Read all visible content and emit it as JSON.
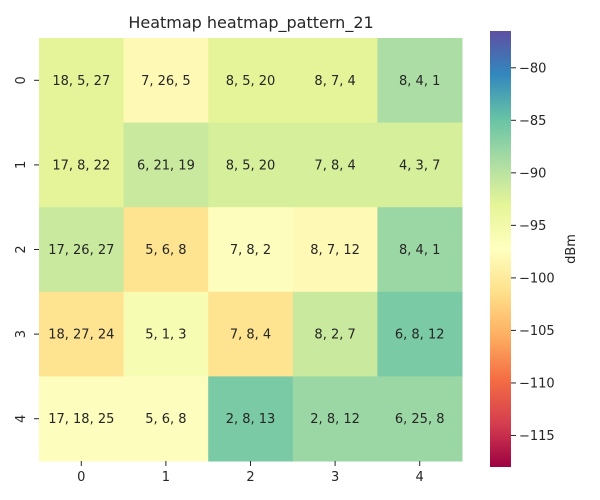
{
  "chart_data": {
    "type": "heatmap",
    "title": "Heatmap heatmap_pattern_21",
    "xlabel": "",
    "ylabel": "",
    "x_categories": [
      "0",
      "1",
      "2",
      "3",
      "4"
    ],
    "y_categories": [
      "0",
      "1",
      "2",
      "3",
      "4"
    ],
    "cell_labels": [
      [
        "18, 5, 27",
        "7, 26, 5",
        "8, 5, 20",
        "8, 7, 4",
        "8, 4, 1"
      ],
      [
        "17, 8, 22",
        "6, 21, 19",
        "8, 5, 20",
        "7, 8, 4",
        "4, 3, 7"
      ],
      [
        "17, 26, 27",
        "5, 6, 8",
        "7, 8, 2",
        "8, 7, 12",
        "8, 4, 1"
      ],
      [
        "18, 27, 24",
        "5, 1, 3",
        "7, 8, 4",
        "8, 2, 7",
        "6, 8, 12"
      ],
      [
        "17, 18, 25",
        "5, 6, 8",
        "2, 8, 13",
        "2, 8, 12",
        "6, 25, 8"
      ]
    ],
    "values": [
      [
        -93,
        -98,
        -93,
        -93,
        -89
      ],
      [
        -93,
        -91,
        -92,
        -92,
        -92
      ],
      [
        -91,
        -101,
        -97,
        -98,
        -88
      ],
      [
        -101,
        -96,
        -101,
        -91,
        -86
      ],
      [
        -97,
        -97,
        -86,
        -88,
        -88
      ]
    ],
    "colorbar": {
      "label": "dBm",
      "min": -118,
      "max": -76.5,
      "ticks": [
        -80,
        -85,
        -90,
        -95,
        -100,
        -105,
        -110,
        -115
      ],
      "tick_labels": [
        "−80",
        "−85",
        "−90",
        "−95",
        "−100",
        "−105",
        "−110",
        "−115"
      ],
      "colormap": "Spectral"
    }
  }
}
